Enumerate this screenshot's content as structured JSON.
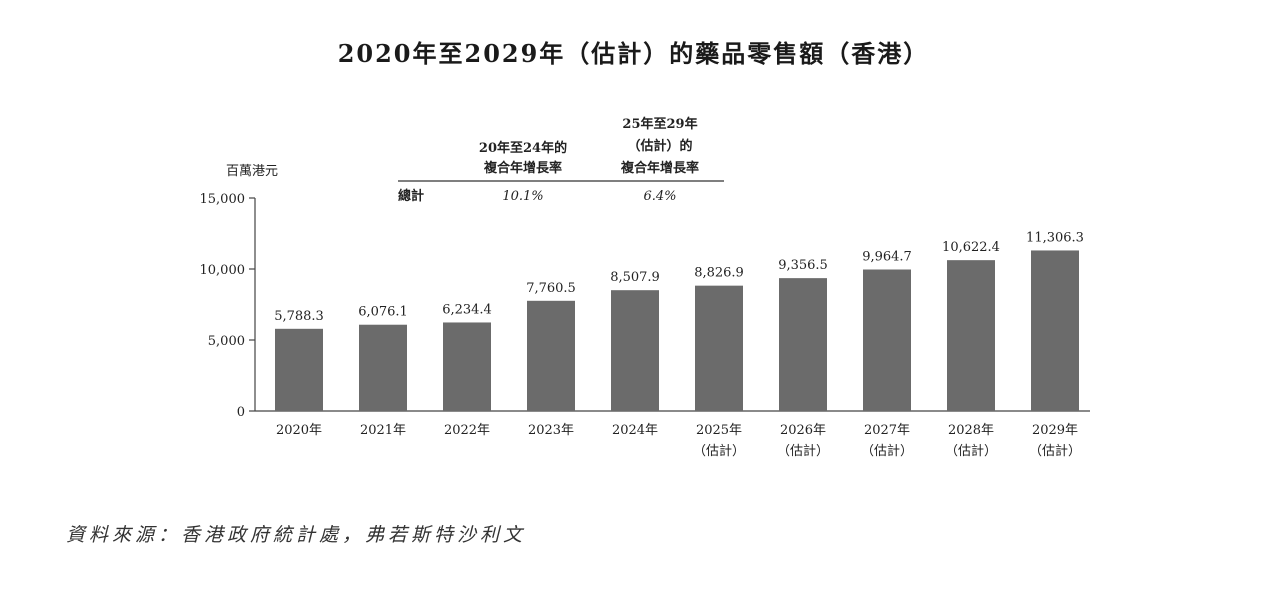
{
  "title": "2020年至2029年（估計）的藥品零售額（香港）",
  "source": "資料來源：香港政府統計處，弗若斯特沙利文",
  "colors": {
    "bar": "#6b6b6b",
    "axis": "#444444",
    "text": "#222222"
  },
  "cagr_table": {
    "col1_header_line1": "20年至24年的",
    "col1_header_line2": "複合年增長率",
    "col2_header_line1": "25年至29年",
    "col2_header_line2": "（估計）的",
    "col2_header_line3": "複合年增長率",
    "row_label": "總計",
    "col1_value": "10.1%",
    "col2_value": "6.4%"
  },
  "chart_data": {
    "type": "bar",
    "ylabel": "百萬港元",
    "ylim": [
      0,
      15000
    ],
    "yticks": [
      0,
      5000,
      10000,
      15000
    ],
    "ytick_labels": [
      "0",
      "5,000",
      "10,000",
      "15,000"
    ],
    "categories": [
      "2020年",
      "2021年",
      "2022年",
      "2023年",
      "2024年",
      "2025年",
      "2026年",
      "2027年",
      "2028年",
      "2029年"
    ],
    "category_sublabels": [
      "",
      "",
      "",
      "",
      "",
      "（估計）",
      "（估計）",
      "（估計）",
      "（估計）",
      "（估計）"
    ],
    "values": [
      5788.3,
      6076.1,
      6234.4,
      7760.5,
      8507.9,
      8826.9,
      9356.5,
      9964.7,
      10622.4,
      11306.3
    ],
    "value_labels": [
      "5,788.3",
      "6,076.1",
      "6,234.4",
      "7,760.5",
      "8,507.9",
      "8,826.9",
      "9,356.5",
      "9,964.7",
      "10,622.4",
      "11,306.3"
    ],
    "grid": false,
    "legend": "none"
  }
}
